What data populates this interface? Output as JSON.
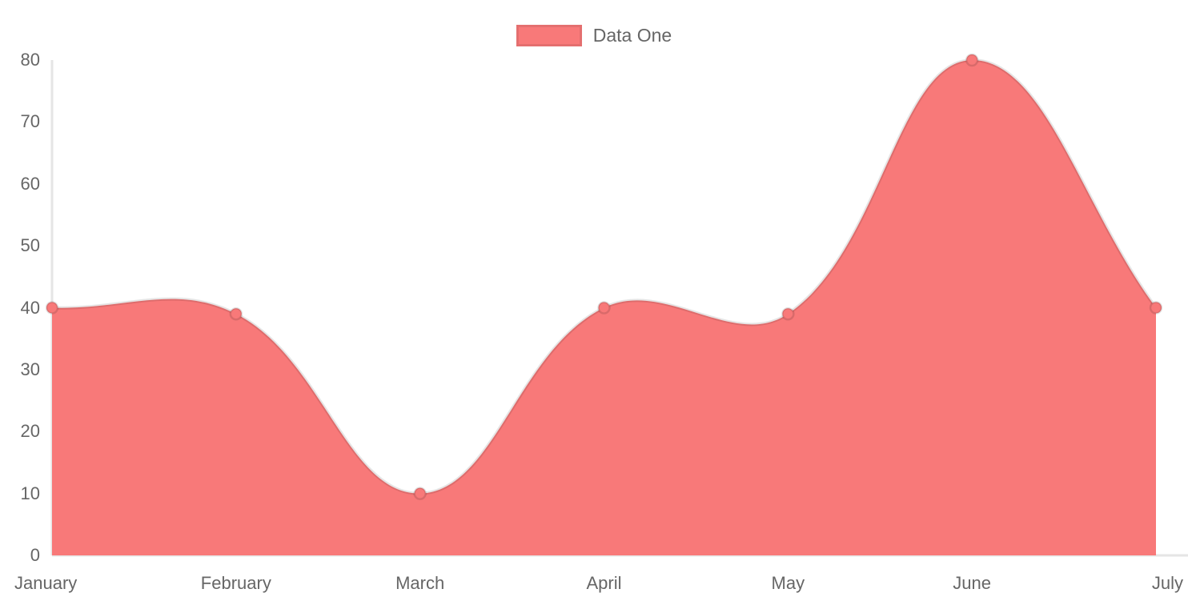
{
  "legend": {
    "position": "top",
    "items": [
      {
        "label": "Data One",
        "swatch_color": "#f87979"
      }
    ]
  },
  "chart_data": {
    "type": "area",
    "title": "",
    "xlabel": "",
    "ylabel": "",
    "categories": [
      "January",
      "February",
      "March",
      "April",
      "May",
      "June",
      "July"
    ],
    "series": [
      {
        "name": "Data One",
        "values": [
          40,
          39,
          10,
          40,
          39,
          80,
          40
        ]
      }
    ],
    "ylim": [
      0,
      80
    ],
    "yticks": [
      0,
      10,
      20,
      30,
      40,
      50,
      60,
      70,
      80
    ],
    "grid": "off",
    "smooth": true,
    "legend_position": "top",
    "colors": {
      "fill": "#f87979",
      "point_fill": "#f87979",
      "line_stroke": "rgba(0,0,0,0.10)",
      "point_stroke": "rgba(0,0,0,0.12)",
      "axis_line": "rgba(0,0,0,0.10)",
      "tick_text": "#666666"
    }
  }
}
